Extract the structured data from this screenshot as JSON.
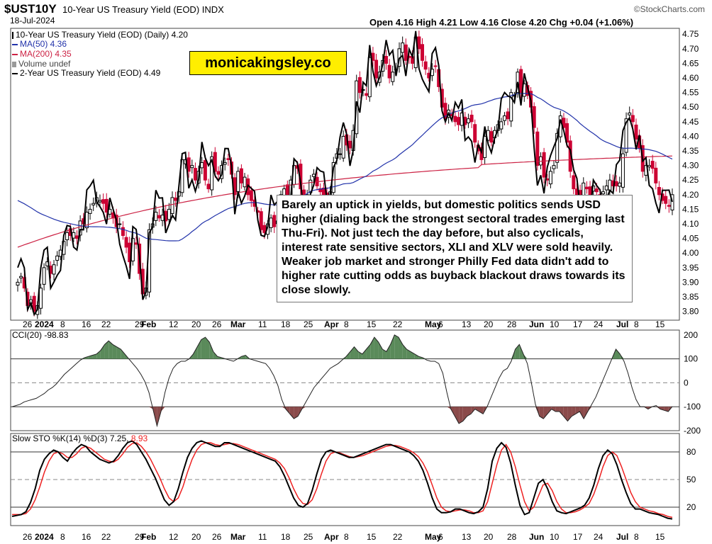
{
  "header": {
    "symbol": "$UST10Y",
    "title": "10-Year US Treasury Yield (EOD)",
    "exchange": "INDX",
    "date": "18-Jul-2024",
    "brand": "©StockCharts.com",
    "ohlc": "Open 4.16  High 4.21  Low 4.16  Close 4.20  Chg +0.04 (+1.06%)"
  },
  "legend": {
    "main": "10-Year US Treasury Yield (EOD) (Daily) 4.20",
    "ma50": "MA(50) 4.36",
    "ma200": "MA(200) 4.35",
    "volume": "Volume undef",
    "two_year": "2-Year US Treasury Yield (EOD) 4.49"
  },
  "watermark": "monicakingsley.co",
  "annotation": "Barely an uptick in yields, but domestic politics sends USD higher (dialing back the strongest sectoral trades emerging last Thu-Fri). Not just tech the day before, but also cyclicals, interest rate sensitive sectors, XLI and XLV were sold heavily. Weaker job market and stronger Philly Fed data didn't add to higher rate cutting odds as buyback blackout draws towards its close slowly.",
  "cci_label": "CCI(20) -98.83",
  "sto_label": "Slow STO %K(14) %D(3) 7.25,",
  "sto_label_d": "8.93",
  "colors": {
    "up": "#000000",
    "down": "#cc0033",
    "ma50": "#2233aa",
    "ma200": "#cc2244",
    "two_year": "#000000",
    "cci_pos_fill": "#5a8a5a",
    "cci_neg_fill": "#8a4a4a",
    "sto_k": "#000000",
    "sto_d": "#ee2222"
  },
  "chart_data": [
    {
      "type": "candlestick",
      "title": "10-Year US Treasury Yield (EOD)",
      "y_ticks": [
        3.8,
        3.85,
        3.9,
        3.95,
        4.0,
        4.05,
        4.1,
        4.15,
        4.2,
        4.25,
        4.3,
        4.35,
        4.4,
        4.45,
        4.5,
        4.55,
        4.6,
        4.65,
        4.7,
        4.75
      ],
      "ylim": [
        3.77,
        4.77
      ],
      "x_labels": [
        "26",
        "2024",
        "8",
        "16",
        "22",
        "29",
        "Feb",
        "12",
        "20",
        "26",
        "Mar",
        "11",
        "18",
        "25",
        "Apr",
        "8",
        "15",
        "22",
        "May",
        "6",
        "13",
        "20",
        "28",
        "Jun",
        "10",
        "17",
        "24",
        "Jul",
        "8",
        "15"
      ],
      "close": [
        3.9,
        3.92,
        3.88,
        3.82,
        3.84,
        3.8,
        3.82,
        3.88,
        3.95,
        3.97,
        3.93,
        3.96,
        3.99,
        4.01,
        4.04,
        4.07,
        4.06,
        4.07,
        4.05,
        4.11,
        4.1,
        4.14,
        4.15,
        4.17,
        4.19,
        4.18,
        4.17,
        4.14,
        4.15,
        4.12,
        4.09,
        4.1,
        4.06,
        4.02,
        3.97,
        4.05,
        4.03,
        3.93,
        3.86,
        3.88,
        4.08,
        4.1,
        4.14,
        4.12,
        4.13,
        4.11,
        4.15,
        4.19,
        4.18,
        4.21,
        4.32,
        4.32,
        4.28,
        4.3,
        4.25,
        4.28,
        4.31,
        4.25,
        4.22,
        4.33,
        4.28,
        4.27,
        4.3,
        4.31,
        4.32,
        4.27,
        4.2,
        4.28,
        4.24,
        4.26,
        4.2,
        4.18,
        4.16,
        4.14,
        4.08,
        4.07,
        4.1,
        4.12,
        4.09,
        4.11,
        4.2,
        4.22,
        4.18,
        4.25,
        4.3,
        4.29,
        4.22,
        4.2,
        4.2,
        4.25,
        4.27,
        4.23,
        4.21,
        4.2,
        4.19,
        4.21,
        4.31,
        4.34,
        4.34,
        4.4,
        4.37,
        4.36,
        4.42,
        4.59,
        4.55,
        4.56,
        4.54,
        4.67,
        4.66,
        4.6,
        4.62,
        4.66,
        4.65,
        4.6,
        4.62,
        4.63,
        4.7,
        4.72,
        4.66,
        4.67,
        4.65,
        4.74,
        4.7,
        4.66,
        4.63,
        4.6,
        4.63,
        4.64,
        4.57,
        4.5,
        4.46,
        4.49,
        4.47,
        4.45,
        4.44,
        4.48,
        4.44,
        4.46,
        4.45,
        4.38,
        4.35,
        4.32,
        4.4,
        4.42,
        4.38,
        4.42,
        4.44,
        4.45,
        4.47,
        4.46,
        4.55,
        4.54,
        4.62,
        4.55,
        4.58,
        4.54,
        4.5,
        4.43,
        4.3,
        4.33,
        4.26,
        4.25,
        4.28,
        4.3,
        4.41,
        4.47,
        4.43,
        4.38,
        4.28,
        4.22,
        4.2,
        4.2,
        4.24,
        4.22,
        4.2,
        4.23,
        4.21,
        4.19,
        4.21,
        4.23,
        4.25,
        4.23,
        4.23,
        4.24,
        4.34,
        4.46,
        4.48,
        4.45,
        4.39,
        4.36,
        4.28,
        4.3,
        4.3,
        4.29,
        4.24,
        4.2,
        4.18,
        4.17,
        4.16,
        4.2
      ]
    },
    {
      "type": "line",
      "title": "CCI(20)",
      "y_ticks": [
        -200,
        -100,
        0,
        100,
        200
      ],
      "ylim": [
        -200,
        220
      ],
      "values": [
        -100,
        -95,
        -90,
        -80,
        -75,
        -70,
        -65,
        -55,
        -45,
        -30,
        -20,
        -5,
        15,
        35,
        50,
        65,
        80,
        95,
        105,
        110,
        115,
        120,
        135,
        160,
        175,
        160,
        150,
        140,
        120,
        100,
        80,
        60,
        35,
        5,
        -40,
        -110,
        -180,
        -120,
        -40,
        20,
        60,
        80,
        90,
        90,
        100,
        120,
        150,
        180,
        190,
        170,
        130,
        110,
        105,
        100,
        95,
        90,
        100,
        110,
        115,
        100,
        95,
        90,
        85,
        80,
        60,
        30,
        -10,
        -70,
        -110,
        -130,
        -150,
        -140,
        -110,
        -80,
        -50,
        -20,
        0,
        20,
        40,
        60,
        70,
        80,
        95,
        110,
        130,
        150,
        130,
        120,
        140,
        160,
        190,
        170,
        140,
        130,
        160,
        200,
        190,
        160,
        140,
        130,
        120,
        110,
        105,
        95,
        90,
        90,
        80,
        40,
        -40,
        -110,
        -140,
        -170,
        -160,
        -140,
        -130,
        -110,
        -120,
        -130,
        -100,
        -60,
        -20,
        20,
        50,
        60,
        90,
        140,
        160,
        120,
        80,
        0,
        -90,
        -140,
        -150,
        -130,
        -110,
        -120,
        -120,
        -140,
        -160,
        -140,
        -130,
        -120,
        -150,
        -120,
        -90,
        -60,
        -20,
        20,
        60,
        100,
        140,
        120,
        90,
        40,
        -20,
        -70,
        -100,
        -100,
        -110,
        -100,
        -95,
        -110,
        -115,
        -120,
        -99
      ]
    },
    {
      "type": "line",
      "title": "Slow STO %K(14) %D(3)",
      "y_ticks": [
        20,
        50,
        80
      ],
      "ylim": [
        0,
        100
      ],
      "series": [
        {
          "name": "%K",
          "values": [
            10,
            11,
            12,
            15,
            25,
            40,
            60,
            72,
            78,
            82,
            80,
            74,
            70,
            78,
            84,
            88,
            86,
            80,
            76,
            72,
            70,
            68,
            70,
            76,
            84,
            90,
            92,
            88,
            80,
            72,
            62,
            52,
            40,
            28,
            22,
            26,
            40,
            58,
            74,
            84,
            90,
            92,
            90,
            88,
            86,
            86,
            90,
            90,
            88,
            86,
            84,
            82,
            80,
            78,
            76,
            74,
            72,
            70,
            64,
            54,
            42,
            30,
            22,
            20,
            24,
            38,
            56,
            72,
            80,
            82,
            80,
            78,
            76,
            74,
            74,
            76,
            78,
            80,
            82,
            84,
            86,
            88,
            88,
            86,
            84,
            82,
            80,
            76,
            70,
            60,
            46,
            30,
            18,
            14,
            14,
            15,
            18,
            18,
            16,
            14,
            13,
            15,
            20,
            40,
            70,
            84,
            90,
            85,
            68,
            44,
            22,
            12,
            14,
            30,
            46,
            50,
            40,
            26,
            16,
            14,
            13,
            15,
            17,
            19,
            22,
            30,
            44,
            62,
            76,
            82,
            78,
            66,
            50,
            36,
            24,
            18,
            18,
            16,
            14,
            13,
            12,
            10,
            8,
            7.25
          ]
        },
        {
          "name": "%D",
          "values": [
            12,
            12,
            12,
            13,
            18,
            28,
            42,
            58,
            70,
            78,
            80,
            78,
            74,
            74,
            78,
            84,
            86,
            84,
            80,
            76,
            72,
            70,
            69,
            72,
            78,
            85,
            89,
            90,
            86,
            80,
            72,
            62,
            52,
            40,
            30,
            26,
            30,
            42,
            58,
            72,
            82,
            88,
            90,
            90,
            88,
            87,
            88,
            89,
            89,
            88,
            86,
            84,
            82,
            80,
            78,
            76,
            74,
            72,
            68,
            62,
            52,
            40,
            30,
            24,
            23,
            28,
            40,
            56,
            70,
            78,
            80,
            79,
            77,
            75,
            74,
            75,
            76,
            78,
            80,
            82,
            84,
            86,
            87,
            87,
            86,
            84,
            82,
            79,
            75,
            68,
            58,
            44,
            30,
            20,
            16,
            15,
            16,
            17,
            17,
            16,
            14,
            14,
            16,
            26,
            46,
            66,
            82,
            88,
            80,
            64,
            44,
            26,
            16,
            20,
            32,
            44,
            46,
            38,
            26,
            18,
            14,
            14,
            15,
            17,
            20,
            24,
            34,
            48,
            64,
            76,
            80,
            76,
            64,
            50,
            36,
            26,
            20,
            18,
            16,
            15,
            13,
            12,
            10,
            8.93
          ]
        }
      ]
    }
  ]
}
